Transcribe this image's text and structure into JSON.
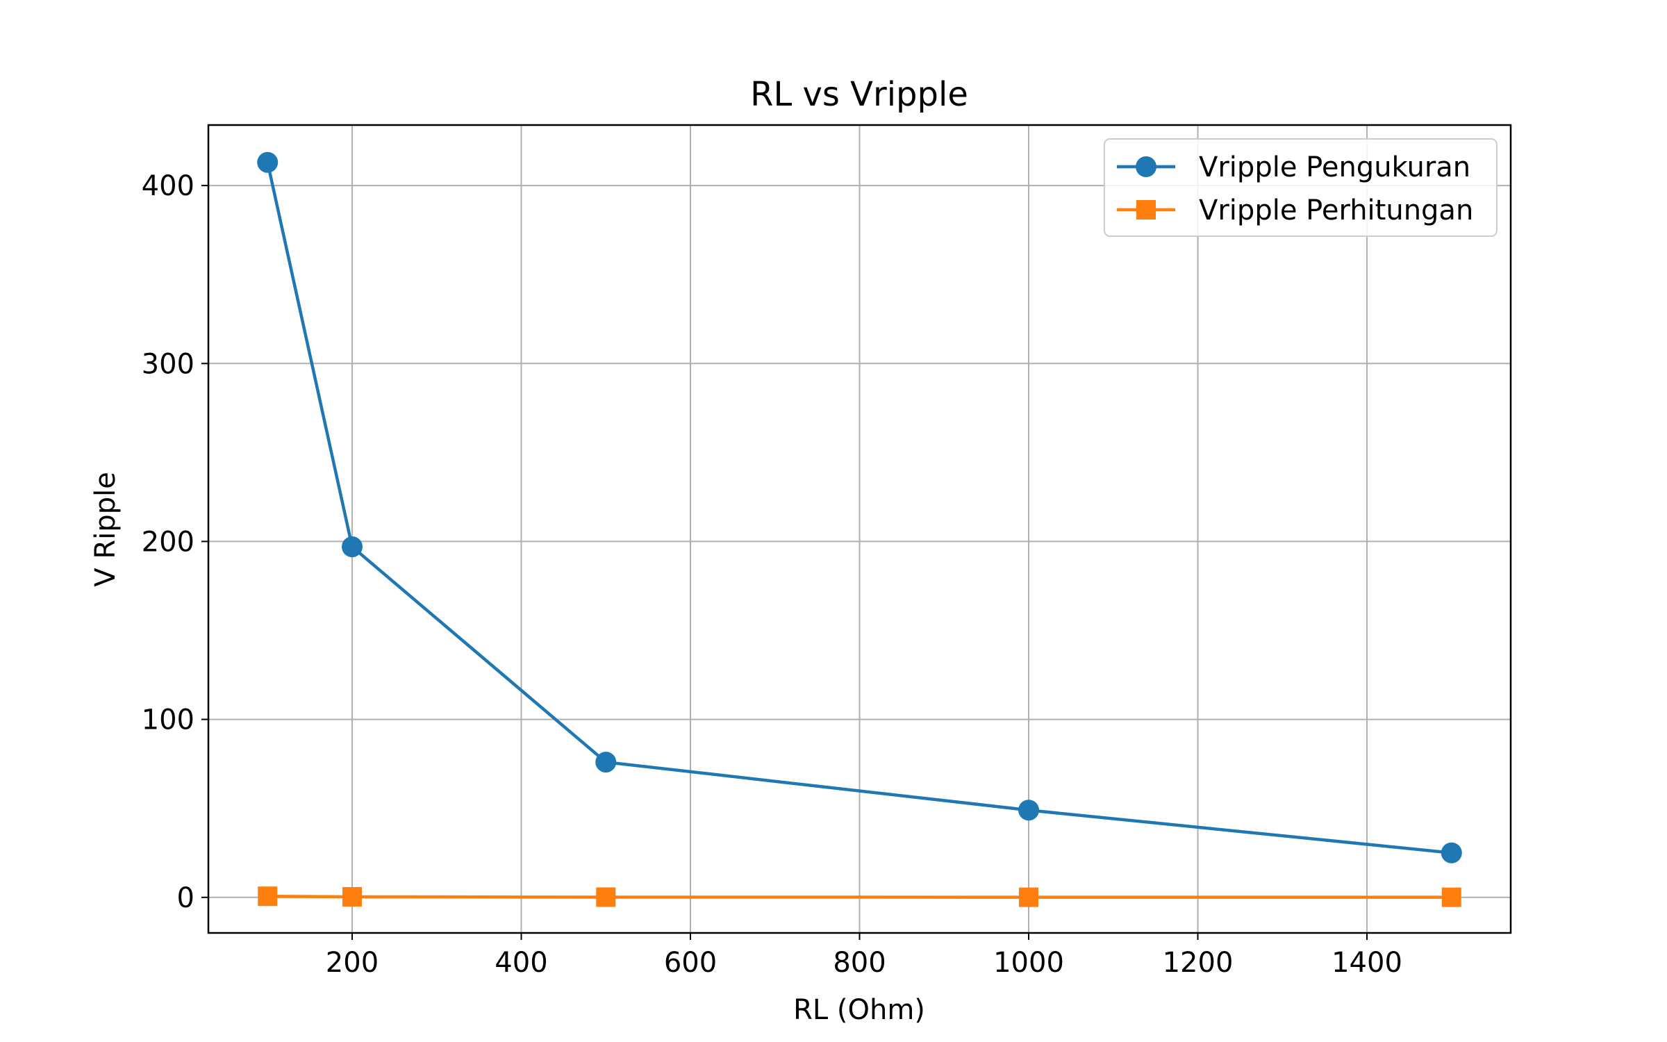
{
  "chart_data": {
    "type": "line",
    "title": "RL vs Vripple",
    "xlabel": "RL (Ohm)",
    "ylabel": "V Ripple",
    "x": [
      100,
      200,
      500,
      1000,
      1500
    ],
    "series": [
      {
        "name": "Vripple Pengukuran",
        "values": [
          413,
          197,
          76,
          49,
          25
        ],
        "color": "#1f77b4",
        "marker": "circle"
      },
      {
        "name": "Vripple Perhitungan",
        "values": [
          0.6,
          0.3,
          0.12,
          0.06,
          0.04
        ],
        "color": "#ff7f0e",
        "marker": "square"
      }
    ],
    "xlim": [
      30,
      1570
    ],
    "ylim": [
      -20,
      434
    ],
    "xticks": [
      200,
      400,
      600,
      800,
      1000,
      1200,
      1400
    ],
    "yticks": [
      0,
      100,
      200,
      300,
      400
    ],
    "grid": true,
    "legend_position": "top-right"
  }
}
